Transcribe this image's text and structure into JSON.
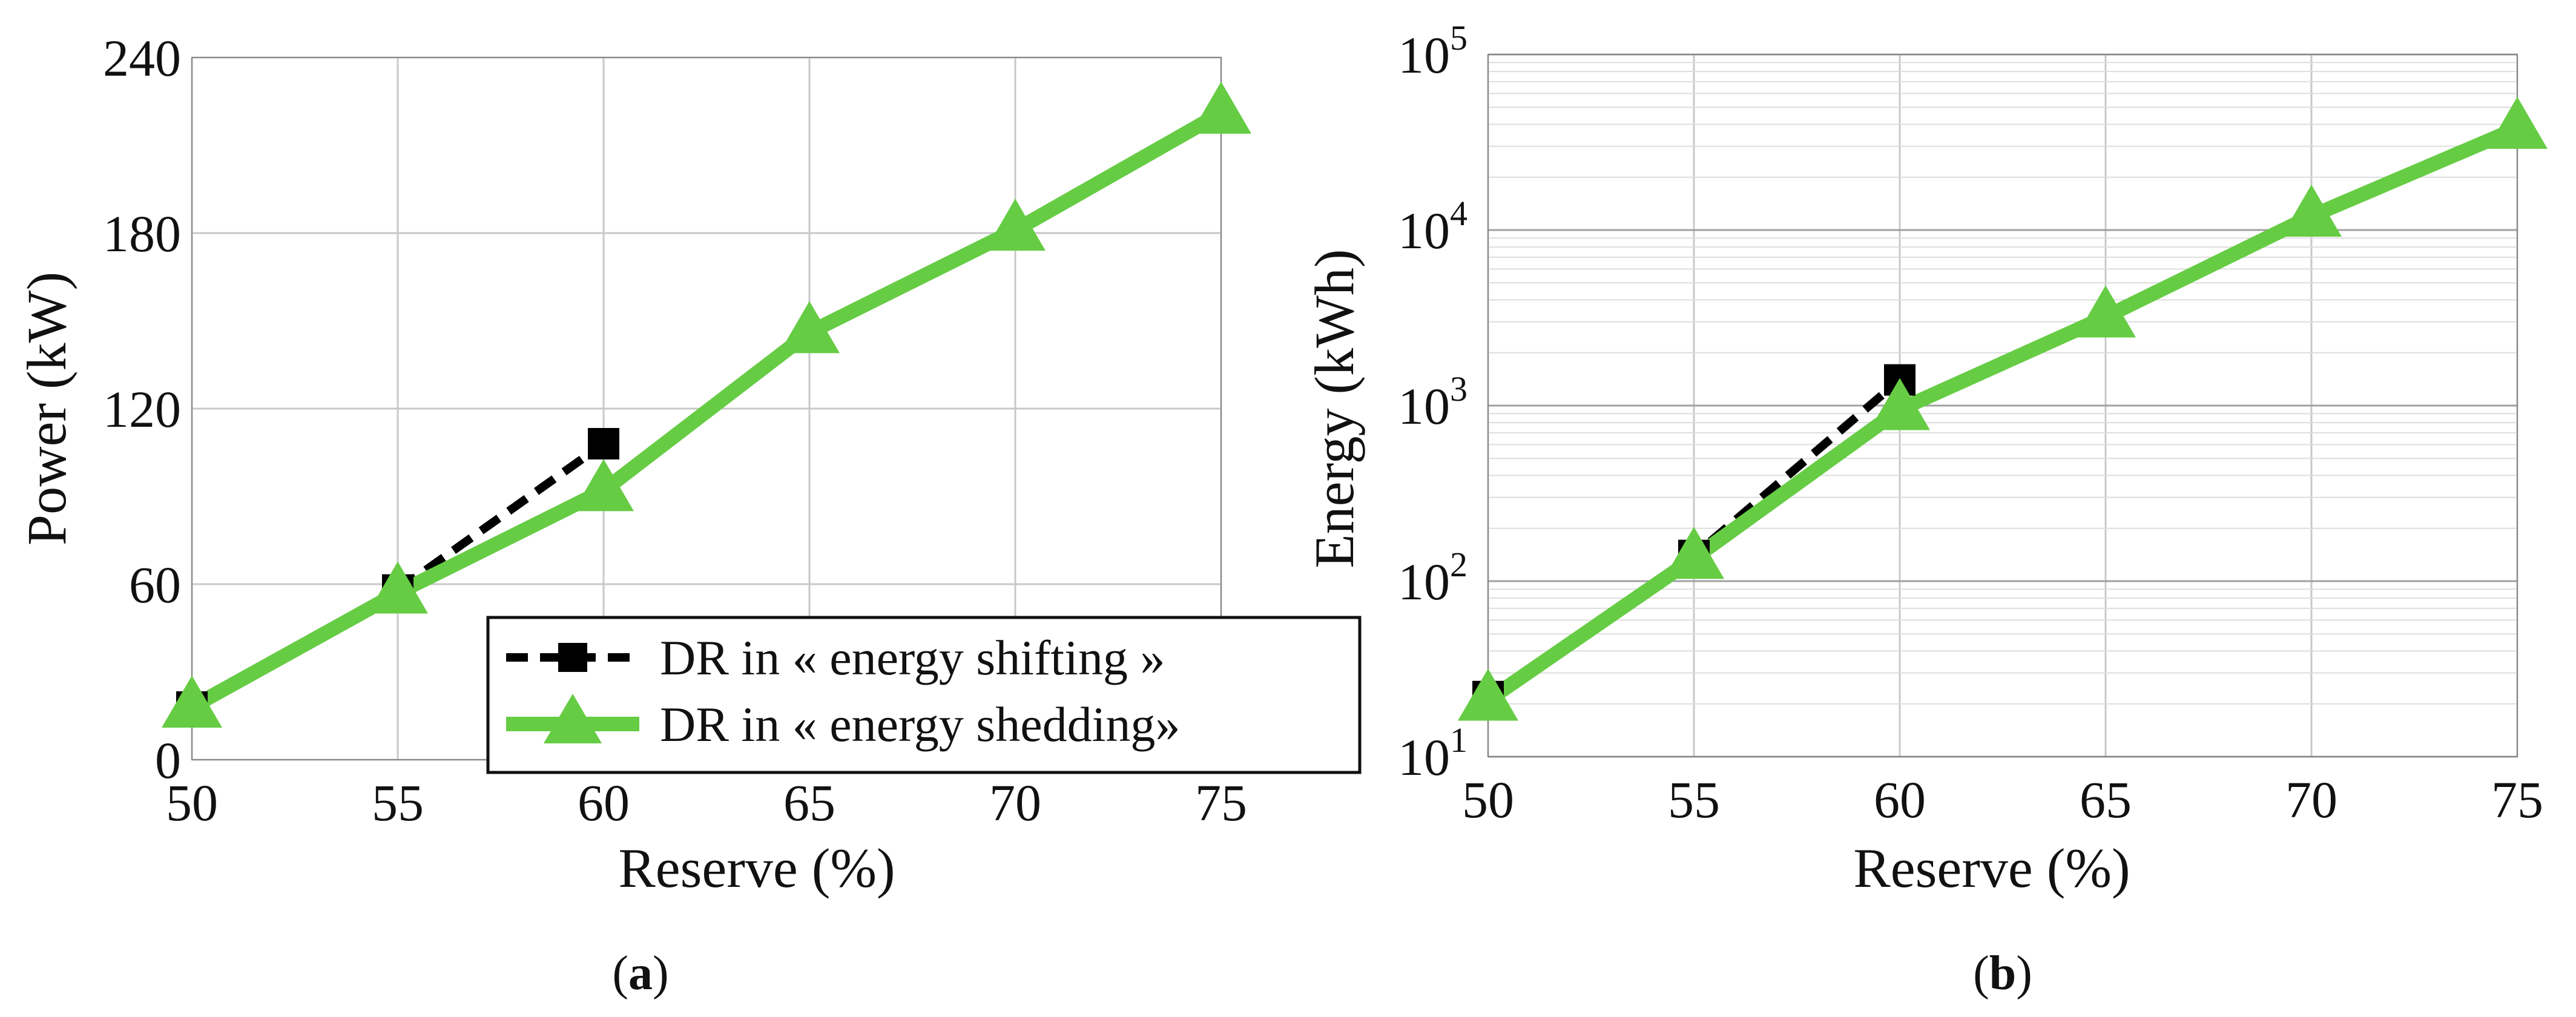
{
  "chart_data": [
    {
      "panel": "a",
      "type": "line",
      "panel_label": "a",
      "xlabel": "Reserve (%)",
      "ylabel": "Power (kW)",
      "x": [
        50,
        55,
        60,
        65,
        70,
        75
      ],
      "xticks": [
        "50",
        "55",
        "60",
        "65",
        "70",
        "75"
      ],
      "yticks": [
        "0",
        "60",
        "120",
        "180",
        "240"
      ],
      "xlim": [
        50,
        75
      ],
      "ylim": [
        0,
        240
      ],
      "yscale": "linear",
      "grid": true,
      "legend": {
        "placement": "bottom-right"
      },
      "series": [
        {
          "name": "DR in « energy shifting »",
          "color": "#000000",
          "style": "dashed",
          "marker": "square",
          "x": [
            50,
            55,
            60
          ],
          "values": [
            18,
            58,
            108
          ]
        },
        {
          "name": "DR in « energy shedding»",
          "color": "#66cc44",
          "style": "solid",
          "marker": "triangle",
          "x": [
            50,
            55,
            60,
            65,
            70,
            75
          ],
          "values": [
            18,
            57,
            92,
            146,
            181,
            221
          ]
        }
      ]
    },
    {
      "panel": "b",
      "type": "line",
      "panel_label": "b",
      "xlabel": "Reserve (%)",
      "ylabel": "Energy (kWh)",
      "x": [
        50,
        55,
        60,
        65,
        70,
        75
      ],
      "xticks": [
        "50",
        "55",
        "60",
        "65",
        "70",
        "75"
      ],
      "yticks": [
        {
          "base": "10",
          "exp": "1",
          "value": 10
        },
        {
          "base": "10",
          "exp": "2",
          "value": 100
        },
        {
          "base": "10",
          "exp": "3",
          "value": 1000
        },
        {
          "base": "10",
          "exp": "4",
          "value": 10000
        },
        {
          "base": "10",
          "exp": "5",
          "value": 100000
        }
      ],
      "xlim": [
        50,
        75
      ],
      "ylim": [
        10,
        100000
      ],
      "yscale": "log",
      "grid": true,
      "series": [
        {
          "name": "DR in « energy shifting »",
          "color": "#000000",
          "style": "dashed",
          "marker": "square",
          "x": [
            50,
            55,
            60
          ],
          "values": [
            22,
            140,
            1400
          ]
        },
        {
          "name": "DR in « energy shedding»",
          "color": "#66cc44",
          "style": "solid",
          "marker": "triangle",
          "x": [
            50,
            55,
            60,
            65,
            70,
            75
          ],
          "values": [
            21,
            135,
            950,
            3200,
            12000,
            38000
          ]
        }
      ]
    }
  ]
}
